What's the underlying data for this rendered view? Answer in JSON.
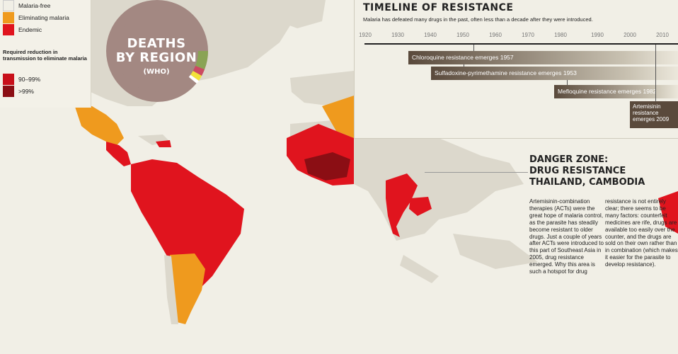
{
  "legend": {
    "items": [
      {
        "label": "Malaria-free",
        "color": "#f1efe6"
      },
      {
        "label": "Eliminating malaria",
        "color": "#ef9a1e"
      },
      {
        "label": "Endemic",
        "color": "#e0141e"
      }
    ],
    "subtitle": "Required reduction in transmission to eliminate malaria",
    "sub_items": [
      {
        "label": "90–99%",
        "color": "#c8101a"
      },
      {
        "label": ">99%",
        "color": "#8b0e14"
      }
    ]
  },
  "donut": {
    "title_line1": "DEATHS",
    "title_line2": "BY REGION",
    "source": "(WHO)",
    "colors": {
      "main": "#a38882",
      "green": "#8aa355",
      "pink": "#cc4a62",
      "yellow": "#f2e23a",
      "hole": "#a38882"
    }
  },
  "timeline": {
    "title": "TIMELINE OF RESISTANCE",
    "subtitle": "Malaria has defeated many drugs in the past, often less than a decade after they were introduced.",
    "years": [
      "1920",
      "1930",
      "1940",
      "1950",
      "1960",
      "1970",
      "1980",
      "1990",
      "2000",
      "2010"
    ],
    "events": [
      {
        "label": "Chloroquine resistance emerges 1957",
        "year": 1957
      },
      {
        "label": "Sulfadoxine-pyrimethamine resistance emerges 1953",
        "year": 1953
      },
      {
        "label": "Mefloquine resistance emerges 1982",
        "year": 1982
      },
      {
        "label": "Artemisinin resistance emerges 2009",
        "year": 2009
      }
    ]
  },
  "danger": {
    "title_line1": "DANGER ZONE:",
    "title_line2": "DRUG RESISTANCE",
    "title_line3": "THAILAND, CAMBODIA",
    "col1": "Artemisinin-combination therapies (ACTs) were the great hope of malaria control, as the parasite has steadily become resistant to older drugs. Just a couple of years after ACTs were introduced to this part of Southeast Asia in 2005, drug resistance emerged. Why this area is such a hotspot for drug",
    "col2": "resistance is not entirely clear; there seems to be many factors: counterfeit medicines are rife, drugs are available too easily over the counter, and the drugs are sold on their own rather than in combination (which makes it easier for the parasite to develop resistance)."
  },
  "colors": {
    "land": "#dcd8cc",
    "endemic": "#e0141e",
    "eliminating": "#ef9a1e",
    "high": "#c8101a",
    "very_high": "#8b0e14",
    "bar": "#5a4a3c"
  }
}
